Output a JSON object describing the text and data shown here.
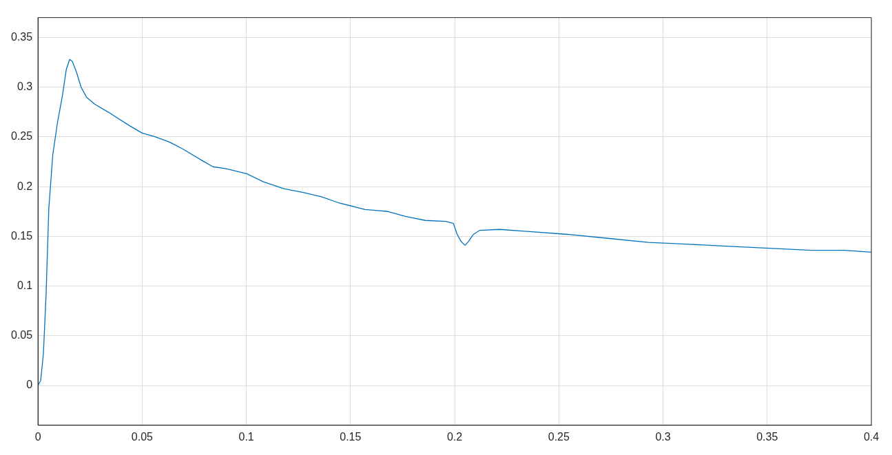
{
  "chart_data": {
    "type": "line",
    "x": [
      0,
      0.0013,
      0.0026,
      0.0039,
      0.0052,
      0.0071,
      0.0094,
      0.0117,
      0.0136,
      0.0152,
      0.0165,
      0.0185,
      0.0207,
      0.0233,
      0.0272,
      0.0337,
      0.0434,
      0.0499,
      0.0564,
      0.0629,
      0.0694,
      0.079,
      0.084,
      0.0904,
      0.1002,
      0.108,
      0.118,
      0.1277,
      0.1358,
      0.144,
      0.157,
      0.163,
      0.168,
      0.1764,
      0.186,
      0.1958,
      0.1994,
      0.201,
      0.203,
      0.205,
      0.2067,
      0.209,
      0.212,
      0.2217,
      0.2347,
      0.2542,
      0.2736,
      0.293,
      0.3126,
      0.332,
      0.351,
      0.371,
      0.387,
      0.4
    ],
    "series": [
      {
        "color": "#0072bd",
        "values": [
          0,
          0.005,
          0.032,
          0.092,
          0.178,
          0.232,
          0.265,
          0.291,
          0.318,
          0.328,
          0.326,
          0.315,
          0.3,
          0.29,
          0.283,
          0.275,
          0.262,
          0.254,
          0.25,
          0.245,
          0.238,
          0.226,
          0.22,
          0.218,
          0.213,
          0.205,
          0.198,
          0.194,
          0.19,
          0.184,
          0.177,
          0.176,
          0.175,
          0.17,
          0.166,
          0.165,
          0.163,
          0.153,
          0.145,
          0.141,
          0.145,
          0.152,
          0.156,
          0.157,
          0.155,
          0.152,
          0.148,
          0.144,
          0.142,
          0.14,
          0.138,
          0.136,
          0.136,
          0.134
        ]
      }
    ],
    "xlim": [
      0,
      0.4
    ],
    "xticks": [
      0,
      0.05,
      0.1,
      0.15,
      0.2,
      0.25,
      0.3,
      0.35,
      0.4
    ],
    "ylim": [
      -0.04,
      0.37
    ],
    "yticks": [
      0,
      0.05,
      0.1,
      0.15,
      0.2,
      0.25,
      0.3,
      0.35
    ],
    "grid": true,
    "legend": false,
    "marker": "none",
    "line_style": "solid"
  }
}
